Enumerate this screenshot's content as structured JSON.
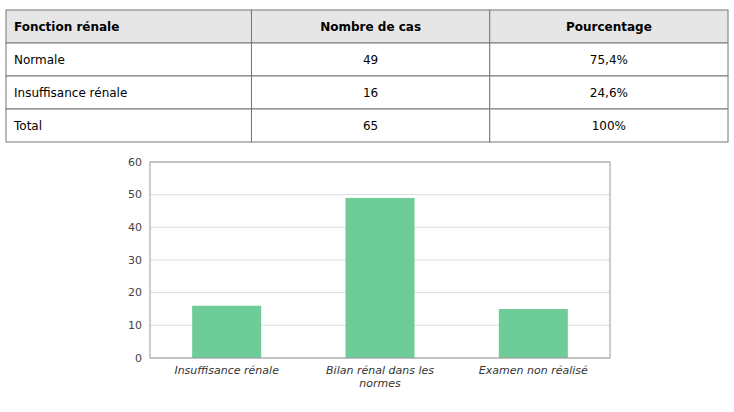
{
  "chart_data": [
    {
      "type": "table",
      "xlabel": "Fonction rénale",
      "categories": [
        "Normale",
        "Insuffisance rénale",
        "Total"
      ],
      "series": [
        {
          "name": "Nombre de cas",
          "values": [
            49,
            16,
            65
          ]
        },
        {
          "name": "Pourcentage",
          "values": [
            75.4,
            24.6,
            100
          ],
          "value_labels": [
            "75,4%",
            "24,6%",
            "100%"
          ]
        }
      ]
    },
    {
      "type": "bar",
      "categories": [
        "Insuffisance rénale",
        "Bilan rénal dans les\nnormes",
        "Examen non réalisé"
      ],
      "values": [
        16,
        49,
        15
      ],
      "color": "#6dcc98",
      "ylim": [
        0,
        60
      ],
      "yticks": [
        0,
        10,
        20,
        30,
        40,
        50,
        60
      ],
      "grid": true
    }
  ]
}
